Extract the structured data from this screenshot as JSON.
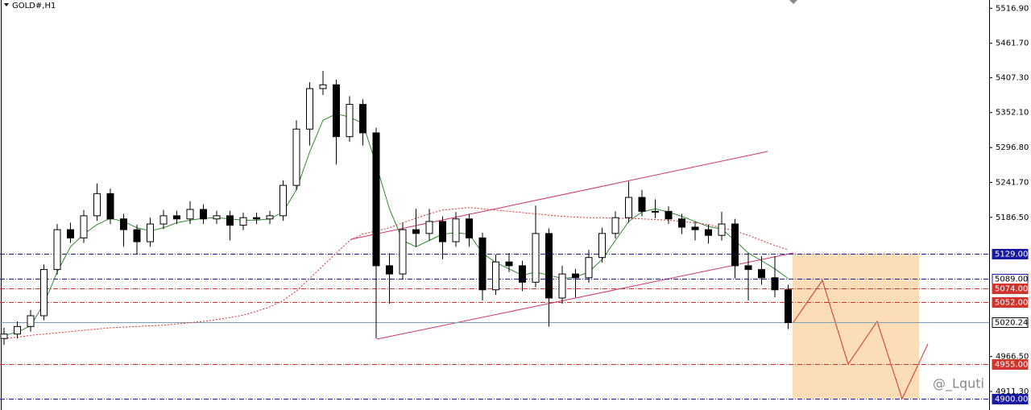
{
  "chart_data": {
    "type": "candlestick",
    "title": "GOLD#,H1",
    "ylim": [
      4882,
      5530
    ],
    "yticks": [
      {
        "value": 5516.9,
        "label": "5516.90"
      },
      {
        "value": 5461.7,
        "label": "5461.70"
      },
      {
        "value": 5407.3,
        "label": "5407.30"
      },
      {
        "value": 5352.1,
        "label": "5352.10"
      },
      {
        "value": 5296.8,
        "label": "5296.80"
      },
      {
        "value": 5241.7,
        "label": "5241.70"
      },
      {
        "value": 5186.5,
        "label": "5186.50"
      },
      {
        "value": 4966.5,
        "label": "4966.50"
      },
      {
        "value": 4911.3,
        "label": "4911.30"
      }
    ],
    "candles": [
      [
        4995,
        5012,
        4985,
        5002
      ],
      [
        5002,
        5022,
        4995,
        5014
      ],
      [
        5014,
        5040,
        5006,
        5031
      ],
      [
        5031,
        5112,
        5024,
        5104
      ],
      [
        5104,
        5176,
        5096,
        5167
      ],
      [
        5167,
        5178,
        5146,
        5154
      ],
      [
        5154,
        5198,
        5146,
        5189
      ],
      [
        5189,
        5240,
        5181,
        5224
      ],
      [
        5224,
        5232,
        5176,
        5184
      ],
      [
        5184,
        5192,
        5140,
        5167
      ],
      [
        5167,
        5175,
        5128,
        5148
      ],
      [
        5148,
        5186,
        5140,
        5176
      ],
      [
        5176,
        5198,
        5168,
        5189
      ],
      [
        5189,
        5197,
        5176,
        5184
      ],
      [
        5184,
        5212,
        5176,
        5199
      ],
      [
        5199,
        5207,
        5176,
        5184
      ],
      [
        5184,
        5197,
        5176,
        5189
      ],
      [
        5189,
        5197,
        5150,
        5174
      ],
      [
        5174,
        5194,
        5166,
        5186
      ],
      [
        5186,
        5194,
        5176,
        5184
      ],
      [
        5184,
        5197,
        5176,
        5189
      ],
      [
        5189,
        5245,
        5181,
        5237
      ],
      [
        5237,
        5340,
        5229,
        5326
      ],
      [
        5326,
        5400,
        5300,
        5390
      ],
      [
        5390,
        5418,
        5380,
        5396
      ],
      [
        5396,
        5404,
        5270,
        5314
      ],
      [
        5314,
        5378,
        5306,
        5365
      ],
      [
        5365,
        5373,
        5300,
        5320
      ],
      [
        5320,
        5328,
        4995,
        5110
      ],
      [
        5110,
        5130,
        5050,
        5097
      ],
      [
        5097,
        5178,
        5089,
        5167
      ],
      [
        5167,
        5200,
        5140,
        5161
      ],
      [
        5161,
        5200,
        5150,
        5180
      ],
      [
        5180,
        5188,
        5120,
        5148
      ],
      [
        5148,
        5195,
        5140,
        5184
      ],
      [
        5184,
        5192,
        5140,
        5154
      ],
      [
        5154,
        5162,
        5055,
        5072
      ],
      [
        5072,
        5128,
        5064,
        5116
      ],
      [
        5116,
        5130,
        5100,
        5110
      ],
      [
        5110,
        5118,
        5070,
        5084
      ],
      [
        5084,
        5205,
        5076,
        5161
      ],
      [
        5161,
        5169,
        5014,
        5059
      ],
      [
        5059,
        5110,
        5050,
        5097
      ],
      [
        5097,
        5105,
        5060,
        5091
      ],
      [
        5091,
        5135,
        5083,
        5123
      ],
      [
        5123,
        5170,
        5115,
        5161
      ],
      [
        5161,
        5196,
        5153,
        5186
      ],
      [
        5186,
        5243,
        5178,
        5218
      ],
      [
        5218,
        5230,
        5188,
        5196
      ],
      [
        5196,
        5215,
        5185,
        5196
      ],
      [
        5196,
        5204,
        5176,
        5184
      ],
      [
        5184,
        5192,
        5160,
        5171
      ],
      [
        5171,
        5180,
        5150,
        5167
      ],
      [
        5167,
        5175,
        5145,
        5158
      ],
      [
        5158,
        5195,
        5150,
        5176
      ],
      [
        5176,
        5184,
        5090,
        5110
      ],
      [
        5110,
        5130,
        5055,
        5104
      ],
      [
        5104,
        5125,
        5080,
        5091
      ],
      [
        5091,
        5125,
        5060,
        5072
      ],
      [
        5072,
        5080,
        5010,
        5020
      ]
    ],
    "series": [
      {
        "color": "#2e8b2e",
        "dash": false,
        "values": [
          5000,
          5005,
          5015,
          5050,
          5100,
          5140,
          5160,
          5175,
          5185,
          5180,
          5170,
          5165,
          5170,
          5178,
          5182,
          5185,
          5186,
          5184,
          5182,
          5182,
          5184,
          5195,
          5230,
          5290,
          5340,
          5350,
          5345,
          5335,
          5270,
          5200,
          5150,
          5140,
          5150,
          5160,
          5162,
          5160,
          5130,
          5115,
          5105,
          5095,
          5100,
          5095,
          5090,
          5092,
          5100,
          5120,
          5150,
          5180,
          5195,
          5200,
          5195,
          5188,
          5180,
          5172,
          5168,
          5150,
          5130,
          5118,
          5105,
          5090
        ]
      },
      {
        "color": "#d0342c",
        "dash": true,
        "values": [
          4995,
          4997,
          5000,
          5002,
          5004,
          5006,
          5008,
          5010,
          5012,
          5013,
          5014,
          5015,
          5016,
          5018,
          5020,
          5022,
          5025,
          5028,
          5032,
          5038,
          5045,
          5055,
          5070,
          5090,
          5110,
          5130,
          5150,
          5160,
          5165,
          5170,
          5178,
          5185,
          5192,
          5198,
          5200,
          5202,
          5200,
          5198,
          5196,
          5194,
          5192,
          5190,
          5188,
          5187,
          5186,
          5186,
          5185,
          5185,
          5184,
          5183,
          5182,
          5180,
          5178,
          5175,
          5170,
          5165,
          5158,
          5150,
          5142,
          5135
        ]
      }
    ],
    "levels": [
      {
        "value": 5129,
        "label": "5129.00",
        "color": "#1a1aa0",
        "filled": true
      },
      {
        "value": 5089,
        "label": "5089.00",
        "color": "#1a1aa0",
        "filled": false
      },
      {
        "value": 5074,
        "label": "5074.00",
        "color": "#d0342c",
        "filled": true
      },
      {
        "value": 5052,
        "label": "5052.00",
        "color": "#d0342c",
        "filled": true
      },
      {
        "value": 5020.24,
        "label": "5020.24",
        "color": "#7f9db9",
        "filled": false
      },
      {
        "value": 4955,
        "label": "4955.00",
        "color": "#d0342c",
        "filled": true
      },
      {
        "value": 4900,
        "label": "4900.00",
        "color": "#1a1aa0",
        "filled": true
      }
    ],
    "watermark": "@_Lquti"
  }
}
